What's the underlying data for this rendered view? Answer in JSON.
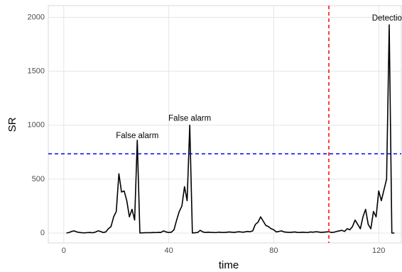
{
  "chart_data": {
    "type": "line",
    "x_label": "time",
    "y_label": "SR",
    "x": [
      1,
      2,
      3,
      4,
      5,
      6,
      7,
      8,
      9,
      10,
      11,
      12,
      13,
      14,
      15,
      16,
      17,
      18,
      19,
      20,
      21,
      22,
      23,
      24,
      25,
      26,
      27,
      28,
      29,
      30,
      31,
      32,
      33,
      34,
      35,
      36,
      37,
      38,
      39,
      40,
      41,
      42,
      43,
      44,
      45,
      46,
      47,
      48,
      49,
      50,
      51,
      52,
      53,
      54,
      55,
      56,
      57,
      58,
      59,
      60,
      61,
      62,
      63,
      64,
      65,
      66,
      67,
      68,
      69,
      70,
      71,
      72,
      73,
      74,
      75,
      76,
      77,
      78,
      79,
      80,
      81,
      82,
      83,
      84,
      85,
      86,
      87,
      88,
      89,
      90,
      91,
      92,
      93,
      94,
      95,
      96,
      97,
      98,
      99,
      100,
      101,
      102,
      103,
      104,
      105,
      106,
      107,
      108,
      109,
      110,
      111,
      112,
      113,
      114,
      115,
      116,
      117,
      118,
      119,
      120,
      121,
      122,
      123,
      124,
      125,
      126
    ],
    "series": [
      {
        "color": "#000000",
        "values": [
          0,
          5,
          15,
          20,
          10,
          5,
          3,
          2,
          4,
          5,
          3,
          8,
          20,
          15,
          5,
          10,
          40,
          60,
          150,
          200,
          550,
          380,
          390,
          300,
          150,
          220,
          120,
          860,
          0,
          2,
          3,
          4,
          3,
          5,
          4,
          6,
          5,
          20,
          10,
          5,
          8,
          30,
          120,
          200,
          250,
          430,
          300,
          1000,
          0,
          3,
          5,
          25,
          10,
          5,
          8,
          6,
          5,
          4,
          8,
          6,
          5,
          7,
          10,
          8,
          6,
          10,
          12,
          8,
          10,
          15,
          12,
          20,
          80,
          100,
          150,
          110,
          70,
          60,
          40,
          30,
          10,
          15,
          20,
          10,
          8,
          6,
          8,
          10,
          6,
          5,
          8,
          6,
          5,
          10,
          8,
          12,
          10,
          6,
          8,
          10,
          12,
          5,
          8,
          15,
          20,
          25,
          15,
          40,
          30,
          60,
          120,
          80,
          40,
          150,
          220,
          80,
          40,
          200,
          150,
          390,
          300,
          400,
          500,
          1930,
          0,
          0
        ]
      }
    ],
    "hline": {
      "value": 735,
      "color": "#0000ff"
    },
    "vline": {
      "value": 101,
      "color": "#ff0000"
    },
    "annotations": [
      {
        "text": "False alarm",
        "x": 28,
        "y": 900
      },
      {
        "text": "False alarm",
        "x": 48,
        "y": 1060
      },
      {
        "text": "Detection",
        "x": 124,
        "y": 1990
      }
    ],
    "xlim": [
      -5.9,
      128.6
    ],
    "ylim": [
      -92,
      2108
    ],
    "xticks": [
      0,
      40,
      80,
      120
    ],
    "yticks": [
      0,
      500,
      1000,
      1500,
      2000
    ],
    "grid": true
  }
}
